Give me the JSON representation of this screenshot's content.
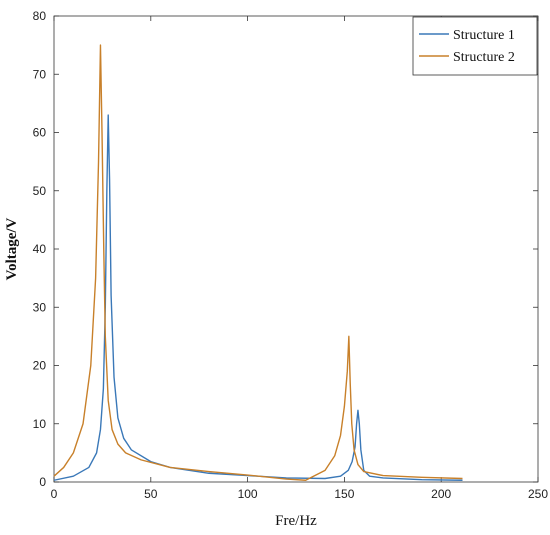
{
  "chart_data": {
    "type": "line",
    "title": "",
    "xlabel": "Fre/Hz",
    "ylabel": "Voltage/V",
    "xlim": [
      0,
      250
    ],
    "ylim": [
      0,
      80
    ],
    "xticks": [
      0,
      50,
      100,
      150,
      200,
      250
    ],
    "yticks": [
      0,
      10,
      20,
      30,
      40,
      50,
      60,
      70,
      80
    ],
    "grid": false,
    "legend_position": "top-right",
    "series": [
      {
        "name": "Structure 1",
        "color": "#3a78b8",
        "x": [
          0,
          10,
          18,
          22,
          24,
          25.5,
          26.5,
          27.3,
          28,
          28.7,
          29.5,
          31,
          33,
          36,
          40,
          50,
          60,
          80,
          100,
          120,
          140,
          148,
          152,
          154,
          155.5,
          156.3,
          157,
          157.7,
          158.5,
          160,
          163,
          170,
          190,
          211
        ],
        "y": [
          0.3,
          1,
          2.5,
          5,
          9,
          16,
          30,
          50,
          63,
          52,
          32,
          18,
          11,
          7.5,
          5.5,
          3.5,
          2.5,
          1.5,
          1.1,
          0.7,
          0.6,
          1,
          2,
          3.5,
          6,
          10,
          12.3,
          10,
          5.5,
          2,
          1,
          0.7,
          0.4,
          0.3
        ]
      },
      {
        "name": "Structure 2",
        "color": "#c8802a",
        "x": [
          0,
          5,
          10,
          15,
          19,
          21.5,
          23,
          24,
          24.8,
          25.7,
          26.5,
          28,
          30,
          33,
          37,
          45,
          60,
          80,
          100,
          120,
          130,
          140,
          145,
          148,
          150,
          151.5,
          152.3,
          153,
          153.8,
          155,
          157,
          160,
          170,
          190,
          211
        ],
        "y": [
          1,
          2.5,
          5,
          10,
          20,
          35,
          55,
          75,
          60,
          40,
          25,
          14,
          9,
          6.5,
          5,
          3.8,
          2.5,
          1.8,
          1.2,
          0.5,
          0.3,
          2,
          4.5,
          8,
          13,
          19,
          25,
          17,
          10,
          5.5,
          3,
          1.8,
          1.1,
          0.8,
          0.6
        ]
      }
    ]
  }
}
